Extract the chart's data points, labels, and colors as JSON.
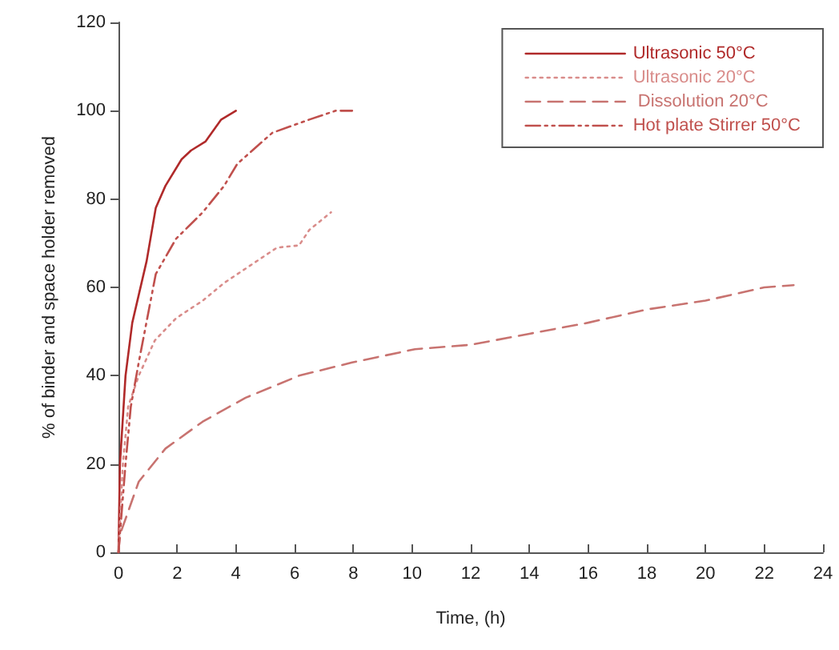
{
  "chart_data": {
    "type": "line",
    "xlabel": "Time, (h)",
    "ylabel": "% of binder and space holder removed",
    "xlim": [
      0,
      24
    ],
    "xticks": [
      0,
      2,
      4,
      6,
      8,
      10,
      12,
      14,
      16,
      18,
      20,
      22,
      24
    ],
    "ylim": [
      0,
      120
    ],
    "yticks": [
      0,
      20,
      40,
      60,
      80,
      100,
      120
    ],
    "grid": false,
    "legend": "top right",
    "marker": "none",
    "series": [
      {
        "name": "Ultrasonic 50°C",
        "color": "#b02a2a",
        "line_style": "solid",
        "x": [
          0,
          0.05,
          0.24,
          0.47,
          0.96,
          1.27,
          1.6,
          2.15,
          2.47,
          2.96,
          3.5,
          4
        ],
        "values": [
          0,
          20,
          40,
          52,
          66,
          78,
          83,
          89,
          91,
          93,
          98,
          100
        ]
      },
      {
        "name": "Ultrasonic 20°C",
        "color": "#d98c8a",
        "line_style": "dotted",
        "x": [
          0,
          0.15,
          0.33,
          0.69,
          1.24,
          1.96,
          2.87,
          3.6,
          4.5,
          5.4,
          6.15,
          6.5,
          7.24
        ],
        "values": [
          0,
          20,
          33,
          40,
          48,
          53,
          57,
          61,
          65,
          69,
          69.5,
          73,
          77
        ]
      },
      {
        "name": " Dissolution 20°C",
        "color": "#c87370",
        "line_style": "dashed",
        "x": [
          0,
          0.05,
          0.69,
          1.6,
          2.87,
          4.33,
          6.15,
          7.96,
          10.1,
          12,
          14,
          16,
          18,
          20,
          22,
          23
        ],
        "values": [
          0,
          4,
          16,
          23.5,
          29.6,
          35,
          40,
          43,
          46,
          47,
          49.5,
          52,
          55,
          57,
          60,
          60.5
        ]
      },
      {
        "name": "Hot plate Stirrer 50°C",
        "color": "#c0504d",
        "line_style": "dashdot",
        "x": [
          0,
          0.24,
          0.42,
          0.69,
          1.27,
          1.96,
          2.87,
          3.6,
          4.05,
          5.24,
          6.5,
          7.4,
          7.96
        ],
        "values": [
          0,
          20,
          33,
          43,
          63,
          71,
          77,
          83,
          88,
          95,
          98,
          100,
          100
        ]
      }
    ]
  }
}
